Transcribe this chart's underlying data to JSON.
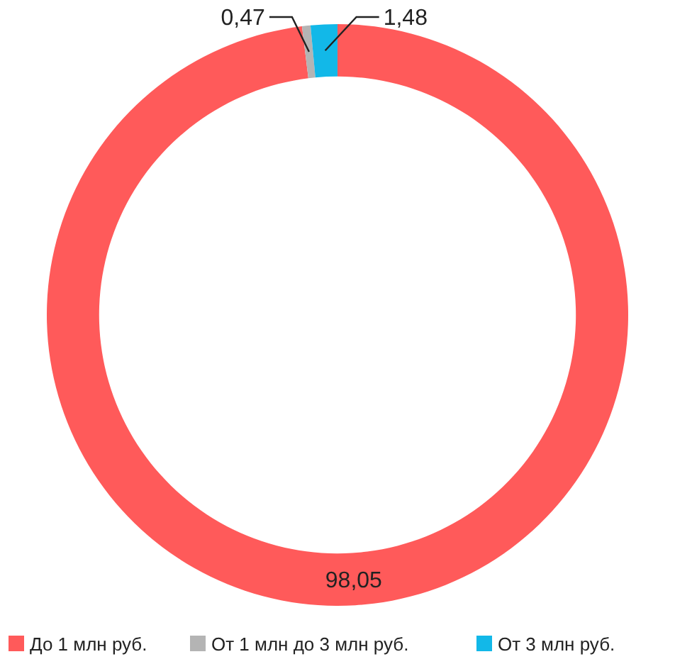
{
  "chart_data": {
    "type": "donut",
    "categories": [
      "До 1 млн руб.",
      "От 1 млн до 3 млн руб.",
      "От 3 млн руб."
    ],
    "values": [
      98.05,
      0.47,
      1.48
    ],
    "colors": [
      "#ff5a5a",
      "#b4b4b4",
      "#12b8e8"
    ],
    "value_labels": [
      "98,05",
      "0,47",
      "1,48"
    ],
    "legend": "bottom"
  }
}
